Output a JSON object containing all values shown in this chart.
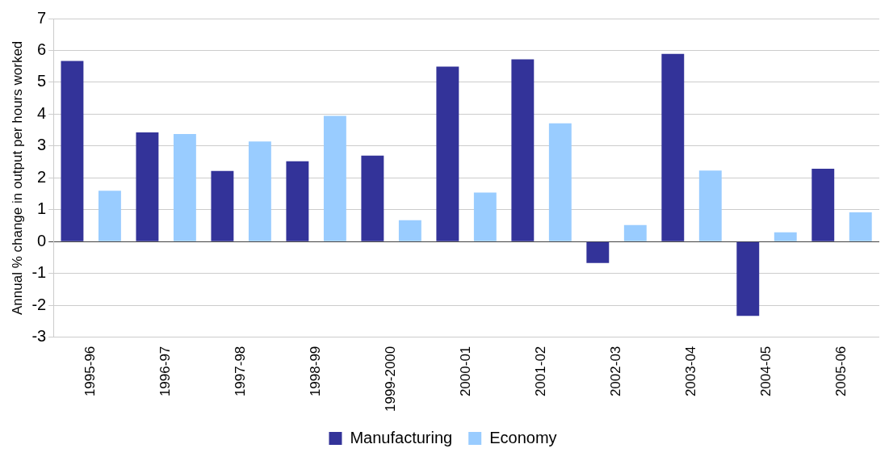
{
  "chart_data": {
    "type": "bar",
    "ylabel": "Annual % change in output per hours worked",
    "categories": [
      "1995-96",
      "1996-97",
      "1997-98",
      "1998-99",
      "1999-2000",
      "2000-01",
      "2001-02",
      "2002-03",
      "2003-04",
      "2004-05",
      "2005-06"
    ],
    "series": [
      {
        "name": "Manufacturing",
        "color": "#333399",
        "values": [
          5.67,
          3.43,
          2.22,
          2.52,
          2.7,
          5.49,
          5.72,
          -0.67,
          5.89,
          -2.33,
          2.29
        ]
      },
      {
        "name": "Economy",
        "color": "#99ccff",
        "values": [
          1.6,
          3.38,
          3.14,
          3.95,
          0.67,
          1.54,
          3.71,
          0.52,
          2.23,
          0.29,
          0.92
        ]
      }
    ],
    "ylim": [
      -3,
      7
    ],
    "yticks": [
      -3,
      -2,
      -1,
      0,
      1,
      2,
      3,
      4,
      5,
      6,
      7
    ],
    "grid": "y",
    "legend": "bottom"
  }
}
